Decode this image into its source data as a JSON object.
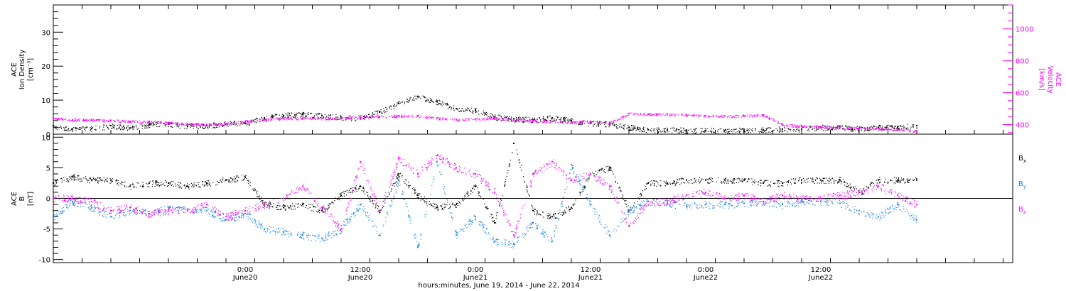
{
  "chart_data": [
    {
      "type": "scatter",
      "panel": "top",
      "y_left": {
        "label_lines": [
          "ACE",
          "Ion Density",
          "[cm⁻³]"
        ],
        "ylim": [
          0,
          38
        ],
        "ticks": [
          0,
          10,
          20,
          30
        ],
        "tick_labels": [
          "0",
          "10",
          "20",
          "30"
        ],
        "color": "#000000"
      },
      "y_right": {
        "label_lines": [
          "ACE",
          "Velocity",
          "[km/s]"
        ],
        "ylim": [
          340,
          1150
        ],
        "ticks": [
          400,
          600,
          800,
          1000
        ],
        "tick_labels": [
          "400",
          "600",
          "800",
          "1000"
        ],
        "color": "#ff00ff"
      },
      "series": [
        {
          "axis": "left",
          "color": "#000000",
          "x": [
            0,
            2,
            4,
            6,
            8,
            10,
            12,
            14,
            16,
            18,
            20,
            22,
            24,
            26,
            28,
            30,
            32,
            34,
            36,
            38,
            40,
            42,
            44,
            46,
            48,
            50,
            52,
            54,
            56,
            58,
            60,
            62,
            64,
            66,
            68,
            70,
            72,
            74,
            76,
            78,
            80,
            82,
            84,
            86,
            88,
            90
          ],
          "y": [
            2.5,
            1.5,
            1.6,
            2.5,
            1.8,
            2.8,
            3.0,
            2.4,
            2.5,
            3.0,
            3.2,
            4.8,
            5.5,
            5.8,
            5.5,
            5.0,
            4.8,
            6.5,
            9.0,
            11.0,
            9.5,
            7.5,
            7.0,
            5.0,
            4.5,
            4.2,
            4.8,
            4.0,
            3.2,
            3.0,
            2.0,
            1.3,
            1.2,
            1.2,
            1.1,
            1.1,
            1.1,
            1.2,
            1.5,
            1.5,
            2.0,
            2.0,
            1.6,
            2.0,
            2.0,
            2.5
          ]
        },
        {
          "axis": "right",
          "color": "#ff00ff",
          "x": [
            0,
            2,
            4,
            6,
            8,
            10,
            12,
            14,
            16,
            18,
            20,
            22,
            24,
            26,
            28,
            30,
            32,
            34,
            36,
            38,
            40,
            42,
            44,
            46,
            48,
            50,
            52,
            54,
            56,
            58,
            60,
            62,
            64,
            66,
            68,
            70,
            72,
            74,
            76,
            78,
            80,
            82,
            84,
            86,
            88,
            90
          ],
          "y": [
            440,
            430,
            430,
            425,
            420,
            420,
            410,
            405,
            400,
            405,
            420,
            430,
            440,
            440,
            440,
            440,
            445,
            450,
            455,
            455,
            440,
            430,
            435,
            440,
            430,
            425,
            420,
            415,
            420,
            410,
            470,
            465,
            465,
            460,
            455,
            455,
            455,
            460,
            400,
            390,
            385,
            380,
            380,
            375,
            370,
            360
          ]
        }
      ]
    },
    {
      "type": "scatter",
      "panel": "bottom",
      "y_left": {
        "label_lines": [
          "ACE",
          "B",
          "[nT]"
        ],
        "ylim": [
          -10.5,
          10.5
        ],
        "ticks": [
          -10,
          -5,
          0,
          5,
          10
        ],
        "tick_labels": [
          "-10",
          "-5",
          "0",
          "5",
          "10"
        ],
        "color": "#000000"
      },
      "legend": [
        {
          "label": "B",
          "sub": "x",
          "color": "#000000"
        },
        {
          "label": "B",
          "sub": "y",
          "color": "#1e88e5"
        },
        {
          "label": "B",
          "sub": "z",
          "color": "#ff00ff"
        }
      ],
      "series": [
        {
          "name": "Bx",
          "color": "#000000",
          "x": [
            0,
            2,
            4,
            6,
            8,
            10,
            12,
            14,
            16,
            18,
            20,
            22,
            24,
            26,
            28,
            30,
            32,
            34,
            36,
            38,
            40,
            42,
            44,
            46,
            48,
            50,
            52,
            54,
            56,
            58,
            60,
            62,
            64,
            66,
            68,
            70,
            72,
            74,
            76,
            78,
            80,
            82,
            84,
            86,
            88,
            90
          ],
          "y": [
            2.5,
            3.5,
            3.0,
            3.0,
            2.0,
            2.5,
            2.5,
            2.0,
            2.5,
            3.0,
            3.5,
            -1.0,
            -1.5,
            -1.0,
            -2.0,
            0.5,
            2.0,
            -2.0,
            4.0,
            0.5,
            -1.5,
            -1.0,
            2.0,
            -4.0,
            9.0,
            -2.0,
            -3.0,
            -1.5,
            4.0,
            5.0,
            -2.0,
            2.5,
            2.5,
            3.0,
            3.0,
            3.0,
            3.0,
            2.5,
            2.5,
            3.0,
            3.0,
            3.0,
            1.0,
            3.0,
            3.0,
            3.0
          ]
        },
        {
          "name": "By",
          "color": "#1e88e5",
          "x": [
            0,
            2,
            4,
            6,
            8,
            10,
            12,
            14,
            16,
            18,
            20,
            22,
            24,
            26,
            28,
            30,
            32,
            34,
            36,
            38,
            40,
            42,
            44,
            46,
            48,
            50,
            52,
            54,
            56,
            58,
            60,
            62,
            64,
            66,
            68,
            70,
            72,
            74,
            76,
            78,
            80,
            82,
            84,
            86,
            88,
            90
          ],
          "y": [
            -3.0,
            -0.5,
            -1.5,
            -3.0,
            -2.0,
            -2.5,
            -1.5,
            -2.0,
            -2.0,
            -3.5,
            -2.5,
            -5.0,
            -5.5,
            -6.0,
            -6.5,
            -5.0,
            -1.0,
            -6.0,
            3.0,
            -8.0,
            6.0,
            -6.0,
            -3.0,
            -7.0,
            -7.5,
            -4.0,
            -7.0,
            5.5,
            -1.0,
            -6.0,
            -2.0,
            -0.5,
            -0.8,
            -1.2,
            -1.0,
            -1.0,
            -0.8,
            -0.5,
            -1.0,
            -0.5,
            -0.5,
            -0.8,
            -2.0,
            -3.0,
            -1.0,
            -3.5
          ]
        },
        {
          "name": "Bz",
          "color": "#ff00ff",
          "x": [
            0,
            2,
            4,
            6,
            8,
            10,
            12,
            14,
            16,
            18,
            20,
            22,
            24,
            26,
            28,
            30,
            32,
            34,
            36,
            38,
            40,
            42,
            44,
            46,
            48,
            50,
            52,
            54,
            56,
            58,
            60,
            62,
            64,
            66,
            68,
            70,
            72,
            74,
            76,
            78,
            80,
            82,
            84,
            86,
            88,
            90
          ],
          "y": [
            0.0,
            0.0,
            -0.5,
            -2.0,
            -1.5,
            -2.5,
            -2.0,
            -2.0,
            -1.0,
            -3.0,
            -2.0,
            -1.0,
            0.0,
            2.0,
            -1.5,
            -5.0,
            6.0,
            -2.0,
            6.5,
            4.0,
            7.0,
            5.0,
            4.0,
            1.0,
            -6.0,
            4.0,
            6.0,
            3.0,
            4.0,
            2.0,
            -4.5,
            -0.5,
            -0.5,
            0.5,
            1.0,
            0.0,
            0.5,
            -0.5,
            0.5,
            0.0,
            0.0,
            0.5,
            1.0,
            2.0,
            0.5,
            -1.0
          ]
        }
      ]
    }
  ],
  "x_axis": {
    "xlim": [
      0,
      100
    ],
    "label": "hours:minutes, June 19, 2014 - June 22, 2014",
    "major_ticks": [
      {
        "hours": 20,
        "time": "0:00",
        "date": "June20"
      },
      {
        "hours": 32,
        "time": "12:00",
        "date": "June20"
      },
      {
        "hours": 44,
        "time": "0:00",
        "date": "June21"
      },
      {
        "hours": 56,
        "time": "12:00",
        "date": "June21"
      },
      {
        "hours": 68,
        "time": "0:00",
        "date": "June22"
      },
      {
        "hours": 80,
        "time": "12:00",
        "date": "June22"
      }
    ]
  }
}
